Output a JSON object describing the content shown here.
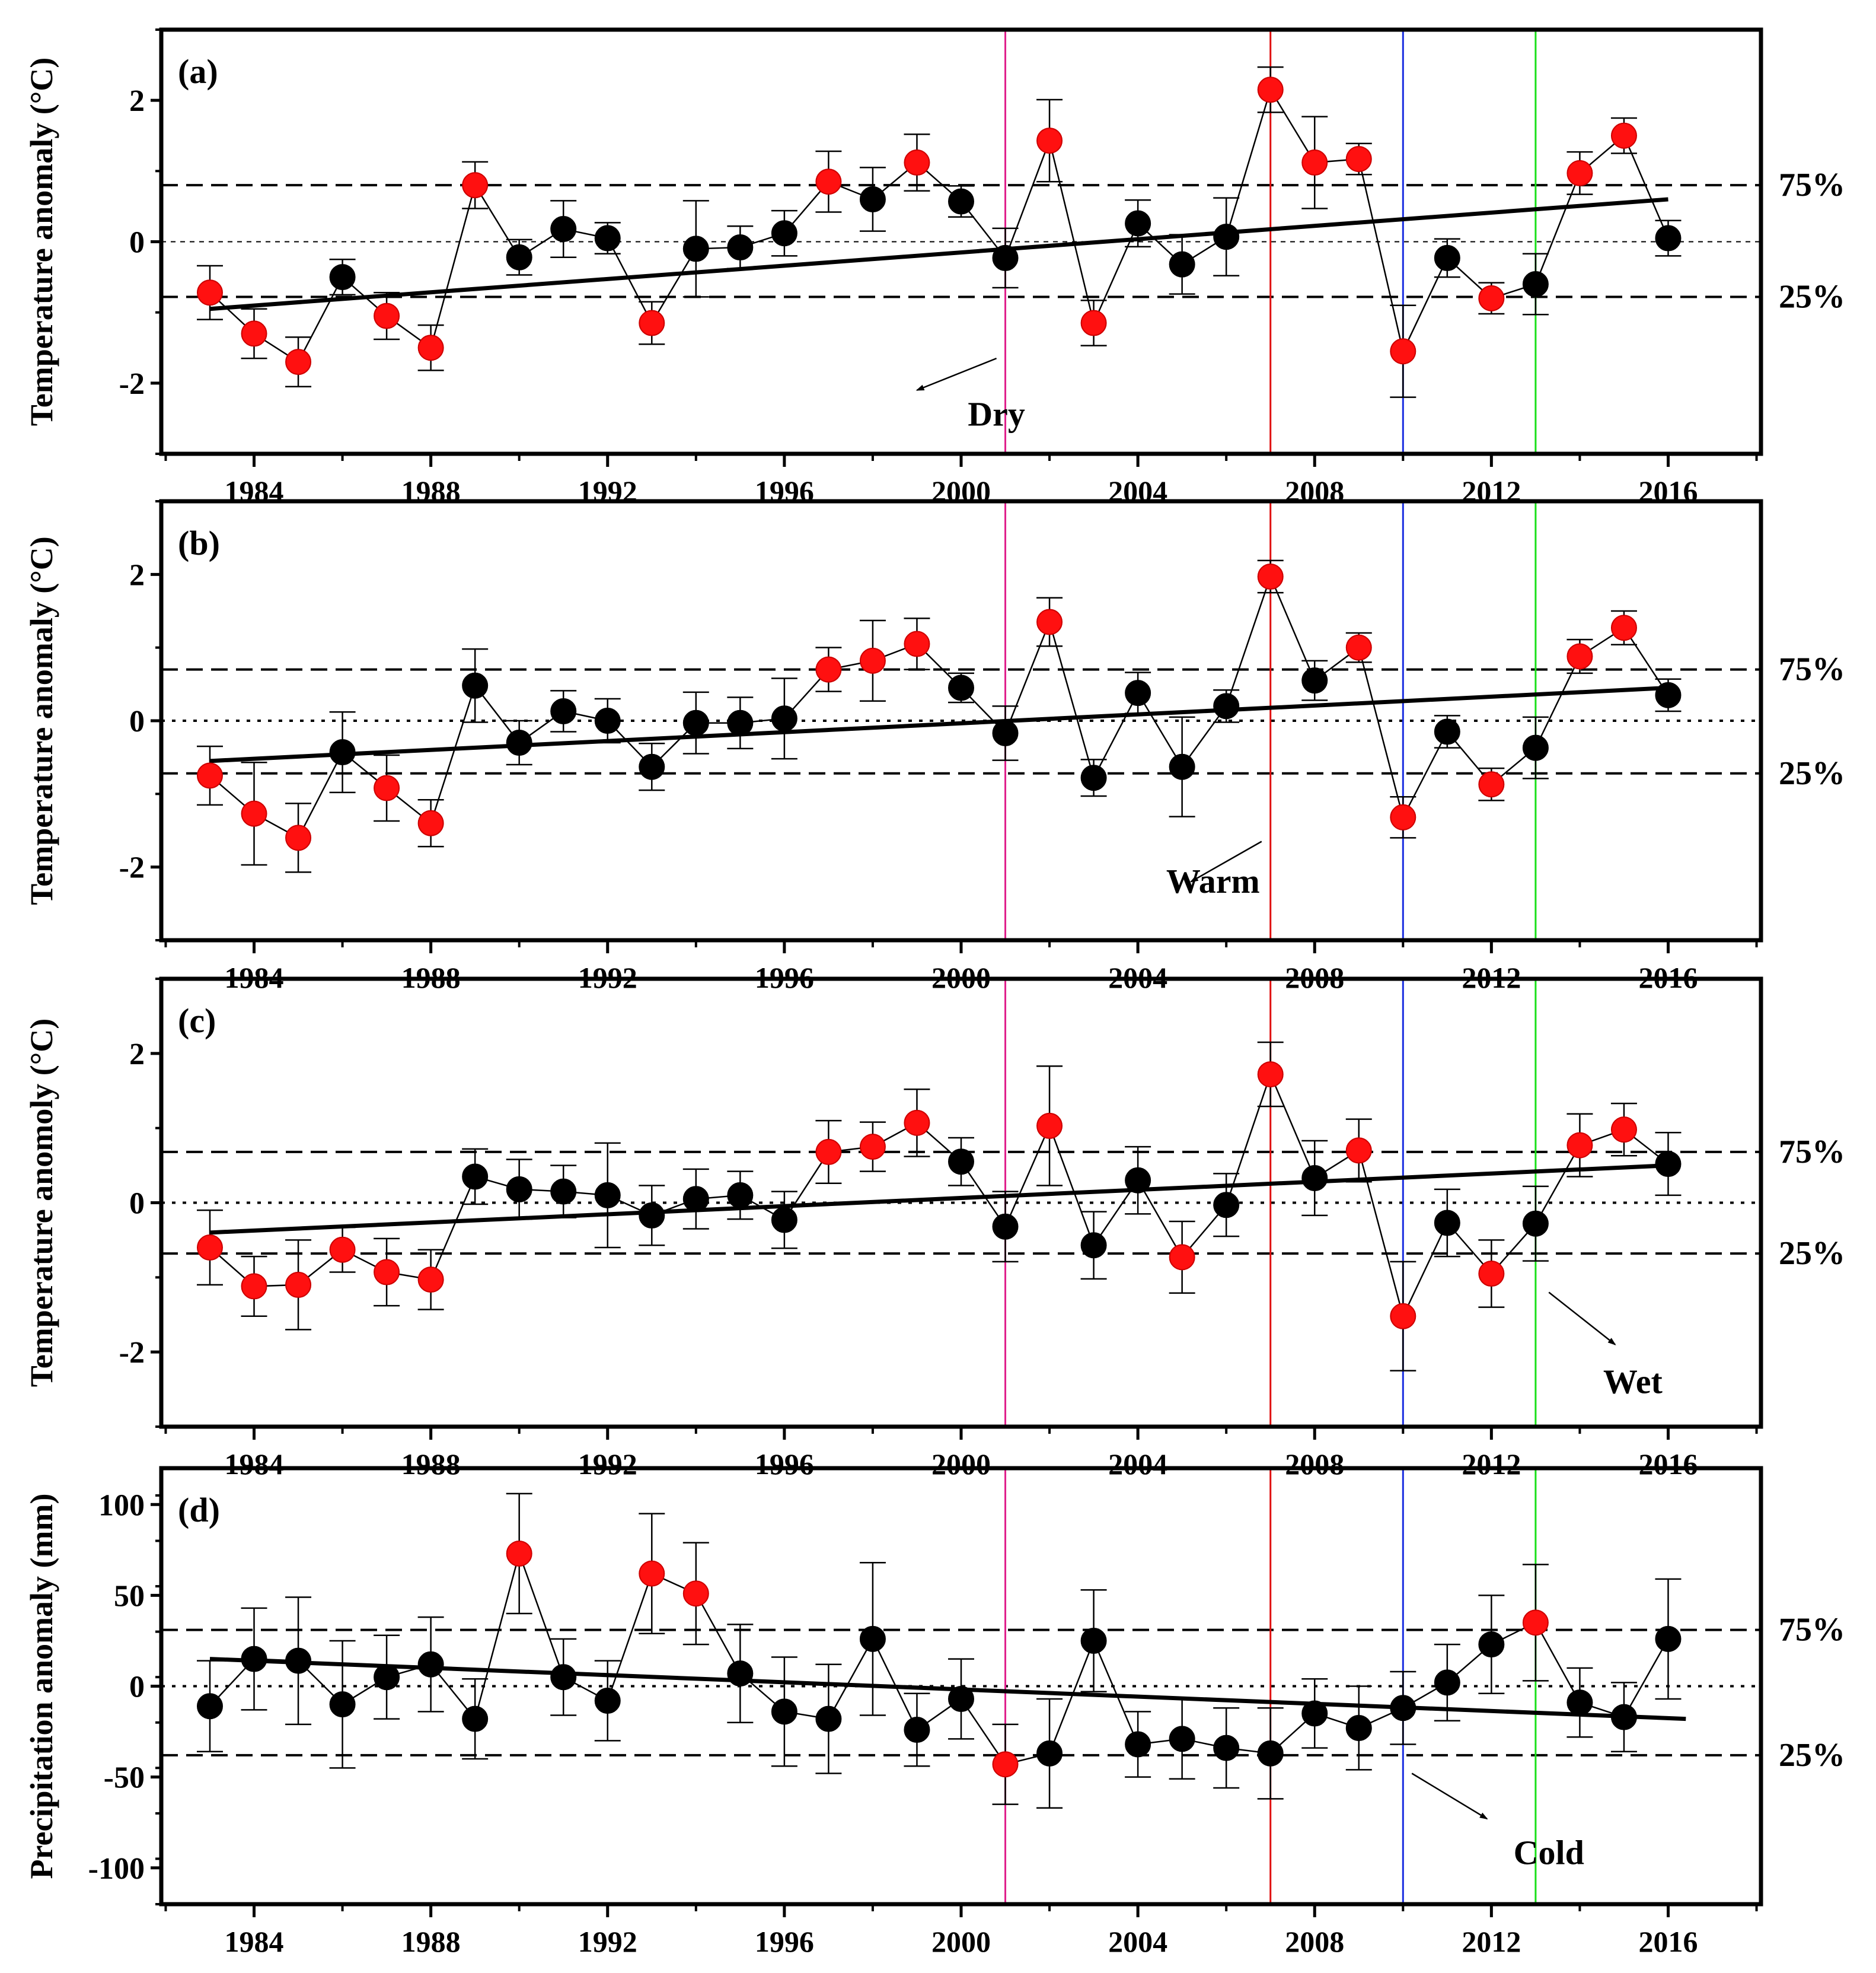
{
  "x_axis": {
    "ticks": [
      1984,
      1988,
      1992,
      1996,
      2000,
      2004,
      2008,
      2012,
      2016
    ],
    "range": [
      1981.9,
      2018.1
    ]
  },
  "event_lines": [
    {
      "year": 2001,
      "color": "#e0208c"
    },
    {
      "year": 2007,
      "color": "#e01010"
    },
    {
      "year": 2010,
      "color": "#1a2ee0"
    },
    {
      "year": 2013,
      "color": "#18e018"
    }
  ],
  "colors": {
    "highlight": "#ff1010",
    "normal": "#000000"
  },
  "chart_data": [
    {
      "type": "scatter",
      "label": "(a)",
      "ylabel": "Temperature anomaly (°C)",
      "ylim": [
        -3,
        3
      ],
      "yticks": [
        -2,
        0,
        2
      ],
      "p75": 0.8,
      "p25": -0.78,
      "p75_label": "75%",
      "p25_label": "25%",
      "trend": {
        "start": [
          1983,
          -0.95
        ],
        "end": [
          2016,
          0.6
        ]
      },
      "annotation": {
        "text": "Dry",
        "at": [
          2000.8,
          -2.6
        ],
        "arrow_from": [
          2000.8,
          -1.65
        ],
        "arrow_to": [
          1999,
          -2.1
        ]
      },
      "points": [
        {
          "year": 1983,
          "value": -0.72,
          "err": 0.38,
          "highlight": true
        },
        {
          "year": 1984,
          "value": -1.3,
          "err": 0.35,
          "highlight": true
        },
        {
          "year": 1985,
          "value": -1.7,
          "err": 0.35,
          "highlight": true
        },
        {
          "year": 1986,
          "value": -0.5,
          "err": 0.25,
          "highlight": false
        },
        {
          "year": 1987,
          "value": -1.05,
          "err": 0.33,
          "highlight": true
        },
        {
          "year": 1988,
          "value": -1.5,
          "err": 0.32,
          "highlight": true
        },
        {
          "year": 1989,
          "value": 0.8,
          "err": 0.33,
          "highlight": true
        },
        {
          "year": 1990,
          "value": -0.22,
          "err": 0.25,
          "highlight": false
        },
        {
          "year": 1991,
          "value": 0.18,
          "err": 0.4,
          "highlight": false
        },
        {
          "year": 1992,
          "value": 0.05,
          "err": 0.22,
          "highlight": false
        },
        {
          "year": 1993,
          "value": -1.15,
          "err": 0.3,
          "highlight": true
        },
        {
          "year": 1994,
          "value": -0.1,
          "err": 0.68,
          "highlight": false
        },
        {
          "year": 1995,
          "value": -0.08,
          "err": 0.3,
          "highlight": false
        },
        {
          "year": 1996,
          "value": 0.12,
          "err": 0.32,
          "highlight": false
        },
        {
          "year": 1997,
          "value": 0.85,
          "err": 0.43,
          "highlight": true
        },
        {
          "year": 1998,
          "value": 0.6,
          "err": 0.45,
          "highlight": false
        },
        {
          "year": 1999,
          "value": 1.12,
          "err": 0.4,
          "highlight": true
        },
        {
          "year": 2000,
          "value": 0.57,
          "err": 0.22,
          "highlight": false
        },
        {
          "year": 2001,
          "value": -0.23,
          "err": 0.42,
          "highlight": false
        },
        {
          "year": 2002,
          "value": 1.43,
          "err": 0.58,
          "highlight": true
        },
        {
          "year": 2003,
          "value": -1.15,
          "err": 0.32,
          "highlight": true
        },
        {
          "year": 2004,
          "value": 0.26,
          "err": 0.33,
          "highlight": false
        },
        {
          "year": 2005,
          "value": -0.32,
          "err": 0.42,
          "highlight": false
        },
        {
          "year": 2006,
          "value": 0.07,
          "err": 0.55,
          "highlight": false
        },
        {
          "year": 2007,
          "value": 2.15,
          "err": 0.32,
          "highlight": true
        },
        {
          "year": 2008,
          "value": 1.12,
          "err": 0.65,
          "highlight": true
        },
        {
          "year": 2009,
          "value": 1.17,
          "err": 0.22,
          "highlight": true
        },
        {
          "year": 2010,
          "value": -1.55,
          "err": 0.65,
          "highlight": true
        },
        {
          "year": 2011,
          "value": -0.23,
          "err": 0.27,
          "highlight": false
        },
        {
          "year": 2012,
          "value": -0.8,
          "err": 0.22,
          "highlight": true
        },
        {
          "year": 2013,
          "value": -0.6,
          "err": 0.43,
          "highlight": false
        },
        {
          "year": 2014,
          "value": 0.97,
          "err": 0.3,
          "highlight": true
        },
        {
          "year": 2015,
          "value": 1.5,
          "err": 0.25,
          "highlight": true
        },
        {
          "year": 2016,
          "value": 0.05,
          "err": 0.25,
          "highlight": false
        }
      ]
    },
    {
      "type": "scatter",
      "label": "(b)",
      "ylabel": "Temperature anomaly (°C)",
      "ylim": [
        -3,
        3
      ],
      "yticks": [
        -2,
        0,
        2
      ],
      "p75": 0.7,
      "p25": -0.72,
      "p75_label": "75%",
      "p25_label": "25%",
      "trend": {
        "start": [
          1983,
          -0.55
        ],
        "end": [
          2016,
          0.45
        ]
      },
      "annotation": {
        "text": "Warm",
        "at": [
          2005.7,
          -2.35
        ],
        "arrow_from": [
          2006.8,
          -1.65
        ],
        "arrow_to": [
          2005.2,
          -2.2
        ]
      },
      "points": [
        {
          "year": 1983,
          "value": -0.75,
          "err": 0.4,
          "highlight": true
        },
        {
          "year": 1984,
          "value": -1.27,
          "err": 0.7,
          "highlight": true
        },
        {
          "year": 1985,
          "value": -1.6,
          "err": 0.47,
          "highlight": true
        },
        {
          "year": 1986,
          "value": -0.43,
          "err": 0.55,
          "highlight": false
        },
        {
          "year": 1987,
          "value": -0.92,
          "err": 0.45,
          "highlight": true
        },
        {
          "year": 1988,
          "value": -1.4,
          "err": 0.32,
          "highlight": true
        },
        {
          "year": 1989,
          "value": 0.48,
          "err": 0.5,
          "highlight": false
        },
        {
          "year": 1990,
          "value": -0.3,
          "err": 0.3,
          "highlight": false
        },
        {
          "year": 1991,
          "value": 0.13,
          "err": 0.28,
          "highlight": false
        },
        {
          "year": 1992,
          "value": 0.0,
          "err": 0.3,
          "highlight": false
        },
        {
          "year": 1993,
          "value": -0.63,
          "err": 0.32,
          "highlight": false
        },
        {
          "year": 1994,
          "value": -0.03,
          "err": 0.42,
          "highlight": false
        },
        {
          "year": 1995,
          "value": -0.03,
          "err": 0.35,
          "highlight": false
        },
        {
          "year": 1996,
          "value": 0.03,
          "err": 0.55,
          "highlight": false
        },
        {
          "year": 1997,
          "value": 0.7,
          "err": 0.3,
          "highlight": true
        },
        {
          "year": 1998,
          "value": 0.82,
          "err": 0.55,
          "highlight": true
        },
        {
          "year": 1999,
          "value": 1.05,
          "err": 0.35,
          "highlight": true
        },
        {
          "year": 2000,
          "value": 0.45,
          "err": 0.2,
          "highlight": false
        },
        {
          "year": 2001,
          "value": -0.17,
          "err": 0.37,
          "highlight": false
        },
        {
          "year": 2002,
          "value": 1.35,
          "err": 0.33,
          "highlight": true
        },
        {
          "year": 2003,
          "value": -0.78,
          "err": 0.25,
          "highlight": false
        },
        {
          "year": 2004,
          "value": 0.38,
          "err": 0.28,
          "highlight": false
        },
        {
          "year": 2005,
          "value": -0.63,
          "err": 0.68,
          "highlight": false
        },
        {
          "year": 2006,
          "value": 0.2,
          "err": 0.22,
          "highlight": false
        },
        {
          "year": 2007,
          "value": 1.97,
          "err": 0.22,
          "highlight": true
        },
        {
          "year": 2008,
          "value": 0.55,
          "err": 0.27,
          "highlight": false
        },
        {
          "year": 2009,
          "value": 1.0,
          "err": 0.2,
          "highlight": true
        },
        {
          "year": 2010,
          "value": -1.32,
          "err": 0.28,
          "highlight": true
        },
        {
          "year": 2011,
          "value": -0.15,
          "err": 0.22,
          "highlight": false
        },
        {
          "year": 2012,
          "value": -0.87,
          "err": 0.22,
          "highlight": true
        },
        {
          "year": 2013,
          "value": -0.37,
          "err": 0.42,
          "highlight": false
        },
        {
          "year": 2014,
          "value": 0.88,
          "err": 0.23,
          "highlight": true
        },
        {
          "year": 2015,
          "value": 1.27,
          "err": 0.23,
          "highlight": true
        },
        {
          "year": 2016,
          "value": 0.35,
          "err": 0.22,
          "highlight": false
        }
      ]
    },
    {
      "type": "scatter",
      "label": "(c)",
      "ylabel": "Temperature anomoly (°C)",
      "ylim": [
        -3,
        3
      ],
      "yticks": [
        -2,
        0,
        2
      ],
      "p75": 0.68,
      "p25": -0.68,
      "p75_label": "75%",
      "p25_label": "25%",
      "trend": {
        "start": [
          1983,
          -0.4
        ],
        "end": [
          2016,
          0.5
        ]
      },
      "annotation": {
        "text": "Wet",
        "at": [
          2015.2,
          -2.55
        ],
        "arrow_from": [
          2013.3,
          -1.2
        ],
        "arrow_to": [
          2014.8,
          -1.9
        ]
      },
      "points": [
        {
          "year": 1983,
          "value": -0.6,
          "err": 0.5,
          "highlight": true
        },
        {
          "year": 1984,
          "value": -1.12,
          "err": 0.4,
          "highlight": true
        },
        {
          "year": 1985,
          "value": -1.1,
          "err": 0.6,
          "highlight": true
        },
        {
          "year": 1986,
          "value": -0.63,
          "err": 0.3,
          "highlight": true
        },
        {
          "year": 1987,
          "value": -0.93,
          "err": 0.45,
          "highlight": true
        },
        {
          "year": 1988,
          "value": -1.03,
          "err": 0.4,
          "highlight": true
        },
        {
          "year": 1989,
          "value": 0.35,
          "err": 0.37,
          "highlight": false
        },
        {
          "year": 1990,
          "value": 0.18,
          "err": 0.4,
          "highlight": false
        },
        {
          "year": 1991,
          "value": 0.15,
          "err": 0.35,
          "highlight": false
        },
        {
          "year": 1992,
          "value": 0.1,
          "err": 0.7,
          "highlight": false
        },
        {
          "year": 1993,
          "value": -0.17,
          "err": 0.4,
          "highlight": false
        },
        {
          "year": 1994,
          "value": 0.05,
          "err": 0.4,
          "highlight": false
        },
        {
          "year": 1995,
          "value": 0.1,
          "err": 0.32,
          "highlight": false
        },
        {
          "year": 1996,
          "value": -0.23,
          "err": 0.38,
          "highlight": false
        },
        {
          "year": 1997,
          "value": 0.68,
          "err": 0.42,
          "highlight": true
        },
        {
          "year": 1998,
          "value": 0.75,
          "err": 0.33,
          "highlight": true
        },
        {
          "year": 1999,
          "value": 1.07,
          "err": 0.45,
          "highlight": true
        },
        {
          "year": 2000,
          "value": 0.55,
          "err": 0.32,
          "highlight": false
        },
        {
          "year": 2001,
          "value": -0.32,
          "err": 0.47,
          "highlight": false
        },
        {
          "year": 2002,
          "value": 1.03,
          "err": 0.8,
          "highlight": true
        },
        {
          "year": 2003,
          "value": -0.57,
          "err": 0.45,
          "highlight": false
        },
        {
          "year": 2004,
          "value": 0.3,
          "err": 0.45,
          "highlight": false
        },
        {
          "year": 2005,
          "value": -0.73,
          "err": 0.48,
          "highlight": true
        },
        {
          "year": 2006,
          "value": -0.03,
          "err": 0.42,
          "highlight": false
        },
        {
          "year": 2007,
          "value": 1.72,
          "err": 0.43,
          "highlight": true
        },
        {
          "year": 2008,
          "value": 0.33,
          "err": 0.5,
          "highlight": false
        },
        {
          "year": 2009,
          "value": 0.7,
          "err": 0.42,
          "highlight": true
        },
        {
          "year": 2010,
          "value": -1.52,
          "err": 0.73,
          "highlight": true
        },
        {
          "year": 2011,
          "value": -0.27,
          "err": 0.45,
          "highlight": false
        },
        {
          "year": 2012,
          "value": -0.95,
          "err": 0.45,
          "highlight": true
        },
        {
          "year": 2013,
          "value": -0.28,
          "err": 0.5,
          "highlight": false
        },
        {
          "year": 2014,
          "value": 0.77,
          "err": 0.42,
          "highlight": true
        },
        {
          "year": 2015,
          "value": 0.98,
          "err": 0.35,
          "highlight": true
        },
        {
          "year": 2016,
          "value": 0.52,
          "err": 0.42,
          "highlight": false
        }
      ]
    },
    {
      "type": "scatter",
      "label": "(d)",
      "ylabel": "Precipitation anomaly (mm)",
      "ylim": [
        -120,
        120
      ],
      "yticks": [
        -100,
        -50,
        0,
        50,
        100
      ],
      "p75": 31,
      "p25": -38,
      "p75_label": "75%",
      "p25_label": "25%",
      "trend": {
        "start": [
          1983,
          15
        ],
        "end": [
          2016.4,
          -18
        ]
      },
      "annotation": {
        "text": "Cold",
        "at": [
          2013.3,
          -98
        ],
        "arrow_from": [
          2010.2,
          -48
        ],
        "arrow_to": [
          2011.9,
          -73
        ]
      },
      "points": [
        {
          "year": 1983,
          "value": -11,
          "err": 25,
          "highlight": false
        },
        {
          "year": 1984,
          "value": 15,
          "err": 28,
          "highlight": false
        },
        {
          "year": 1985,
          "value": 14,
          "err": 35,
          "highlight": false
        },
        {
          "year": 1986,
          "value": -10,
          "err": 35,
          "highlight": false
        },
        {
          "year": 1987,
          "value": 5,
          "err": 23,
          "highlight": false
        },
        {
          "year": 1988,
          "value": 12,
          "err": 26,
          "highlight": false
        },
        {
          "year": 1989,
          "value": -18,
          "err": 22,
          "highlight": false
        },
        {
          "year": 1990,
          "value": 73,
          "err": 33,
          "highlight": true
        },
        {
          "year": 1991,
          "value": 5,
          "err": 21,
          "highlight": false
        },
        {
          "year": 1992,
          "value": -8,
          "err": 22,
          "highlight": false
        },
        {
          "year": 1993,
          "value": 62,
          "err": 33,
          "highlight": true
        },
        {
          "year": 1994,
          "value": 51,
          "err": 28,
          "highlight": true
        },
        {
          "year": 1995,
          "value": 7,
          "err": 27,
          "highlight": false
        },
        {
          "year": 1996,
          "value": -14,
          "err": 30,
          "highlight": false
        },
        {
          "year": 1997,
          "value": -18,
          "err": 30,
          "highlight": false
        },
        {
          "year": 1998,
          "value": 26,
          "err": 42,
          "highlight": false
        },
        {
          "year": 1999,
          "value": -24,
          "err": 20,
          "highlight": false
        },
        {
          "year": 2000,
          "value": -7,
          "err": 22,
          "highlight": false
        },
        {
          "year": 2001,
          "value": -43,
          "err": 22,
          "highlight": true
        },
        {
          "year": 2002,
          "value": -37,
          "err": 30,
          "highlight": false
        },
        {
          "year": 2003,
          "value": 25,
          "err": 28,
          "highlight": false
        },
        {
          "year": 2004,
          "value": -32,
          "err": 18,
          "highlight": false
        },
        {
          "year": 2005,
          "value": -29,
          "err": 22,
          "highlight": false
        },
        {
          "year": 2006,
          "value": -34,
          "err": 22,
          "highlight": false
        },
        {
          "year": 2007,
          "value": -37,
          "err": 25,
          "highlight": false
        },
        {
          "year": 2008,
          "value": -15,
          "err": 19,
          "highlight": false
        },
        {
          "year": 2009,
          "value": -23,
          "err": 23,
          "highlight": false
        },
        {
          "year": 2010,
          "value": -12,
          "err": 20,
          "highlight": false
        },
        {
          "year": 2011,
          "value": 2,
          "err": 21,
          "highlight": false
        },
        {
          "year": 2012,
          "value": 23,
          "err": 27,
          "highlight": false
        },
        {
          "year": 2013,
          "value": 35,
          "err": 32,
          "highlight": true
        },
        {
          "year": 2014,
          "value": -9,
          "err": 19,
          "highlight": false
        },
        {
          "year": 2015,
          "value": -17,
          "err": 19,
          "highlight": false
        },
        {
          "year": 2016,
          "value": 26,
          "err": 33,
          "highlight": false
        }
      ]
    }
  ]
}
